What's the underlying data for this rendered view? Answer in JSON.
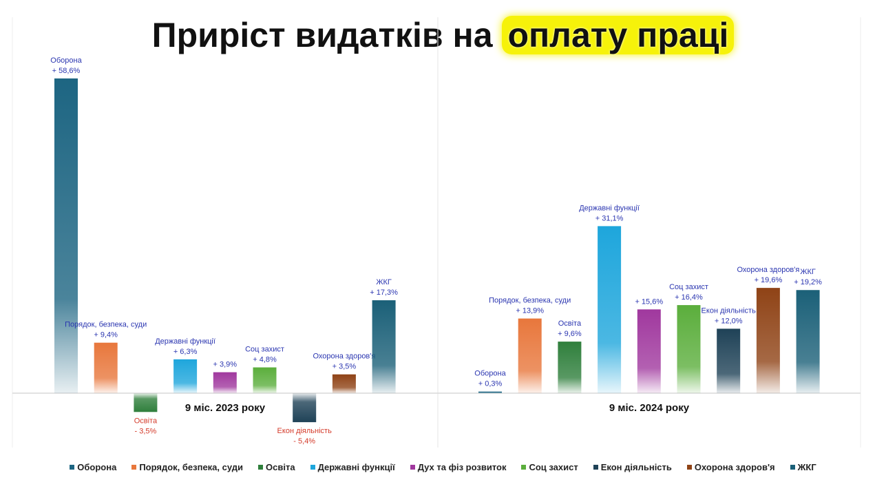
{
  "title": {
    "main": "Приріст видатків на",
    "highlight": "оплату праці"
  },
  "chart_data": {
    "type": "bar",
    "title": "Приріст видатків на оплату праці",
    "categories": [
      "Оборона",
      "Порядок, безпека, суди",
      "Освіта",
      "Державні функції",
      "Дух та фіз розвиток",
      "Соц захист",
      "Екон діяльність",
      "Охорона здоров'я",
      "ЖКГ"
    ],
    "colors": [
      "#1d6582",
      "#e8773c",
      "#2f7f3c",
      "#1ea6dc",
      "#a0389e",
      "#5bae3c",
      "#1f4257",
      "#8f4316",
      "#1b6078"
    ],
    "show_name": [
      [
        true,
        true,
        true,
        true,
        false,
        true,
        true,
        true,
        true
      ],
      [
        true,
        true,
        true,
        true,
        false,
        true,
        true,
        true,
        true
      ]
    ],
    "series": [
      {
        "name": "9 міс. 2023 року",
        "values": [
          58.6,
          9.4,
          -3.5,
          6.3,
          3.9,
          4.8,
          -5.4,
          3.5,
          17.3
        ],
        "labels": [
          "+ 58,6%",
          "+ 9,4%",
          "- 3,5%",
          "+ 6,3%",
          "+ 3,9%",
          "+ 4,8%",
          "- 5,4%",
          "+ 3,5%",
          "+ 17,3%"
        ]
      },
      {
        "name": "9 міс. 2024 року",
        "values": [
          0.3,
          13.9,
          9.6,
          31.1,
          15.6,
          16.4,
          12.0,
          19.6,
          19.2
        ],
        "labels": [
          "+ 0,3%",
          "+ 13,9%",
          "+ 9,6%",
          "+ 31,1%",
          "+ 15,6%",
          "+ 16,4%",
          "+ 12,0%",
          "+ 19,6%",
          "+ 19,2%"
        ]
      }
    ],
    "legend_position": "bottom",
    "grid": false
  }
}
